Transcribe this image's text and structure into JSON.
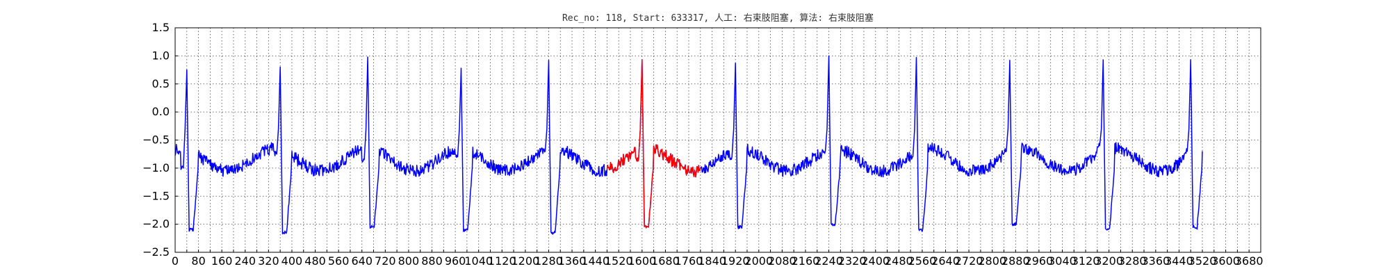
{
  "chart_data": {
    "type": "line",
    "title": "Rec_no: 118, Start: 633317, 人工: 右束肢阻塞, 算法: 右束肢阻塞",
    "xlabel": "",
    "ylabel": "",
    "xlim": [
      0,
      3720
    ],
    "ylim": [
      -2.5,
      1.5
    ],
    "grid": true,
    "y_ticks": [
      -2.5,
      -2.0,
      -1.5,
      -1.0,
      -0.5,
      0.0,
      0.5,
      1.0,
      1.5
    ],
    "y_tick_labels": [
      "−2.5",
      "−2.0",
      "−1.5",
      "−1.0",
      "−0.5",
      "0.0",
      "0.5",
      "1.0",
      "1.5"
    ],
    "x_ticks": [
      0,
      40,
      80,
      120,
      160,
      200,
      240,
      280,
      320,
      360,
      400,
      440,
      480,
      520,
      560,
      600,
      640,
      680,
      720,
      760,
      800,
      840,
      880,
      920,
      960,
      1000,
      1040,
      1080,
      1120,
      1160,
      1200,
      1240,
      1280,
      1320,
      1360,
      1400,
      1440,
      1480,
      1520,
      1560,
      1600,
      1640,
      1680,
      1720,
      1760,
      1800,
      1840,
      1880,
      1920,
      1960,
      2000,
      2040,
      2080,
      2120,
      2160,
      2200,
      2240,
      2280,
      2320,
      2360,
      2400,
      2440,
      2480,
      2520,
      2560,
      2600,
      2640,
      2680,
      2720,
      2760,
      2800,
      2840,
      2880,
      2920,
      2960,
      3000,
      3040,
      3080,
      3120,
      3160,
      3200,
      3240,
      3280,
      3320,
      3360,
      3400,
      3440,
      3480,
      3520,
      3560,
      3600,
      3640,
      3680,
      3720
    ],
    "tick_label_every": 2,
    "beat_r_peaks": [
      40,
      360,
      660,
      980,
      1280,
      1600,
      1920,
      2240,
      2540,
      2860,
      3180,
      3480
    ],
    "beat_r_heights": [
      0.75,
      0.8,
      0.98,
      0.78,
      0.92,
      0.93,
      0.87,
      1.0,
      0.97,
      0.92,
      0.93,
      0.93
    ],
    "baseline_before_r": [
      -1.0,
      -0.75,
      -0.85,
      -0.8,
      -0.7,
      -0.85,
      -0.8,
      -0.7,
      -0.8,
      -0.7,
      -0.6,
      -0.7
    ],
    "s_trough": [
      -2.1,
      -2.15,
      -2.05,
      -2.1,
      -2.15,
      -2.05,
      -2.05,
      -2.0,
      -2.1,
      -2.0,
      -2.1,
      -2.05
    ],
    "signal_end": 3520,
    "series": [
      {
        "name": "",
        "color": "#0000ff",
        "x_range": [
          0,
          3520
        ]
      },
      {
        "name": "",
        "color": "#ff0000",
        "x_range": [
          1480,
          1800
        ]
      }
    ]
  }
}
